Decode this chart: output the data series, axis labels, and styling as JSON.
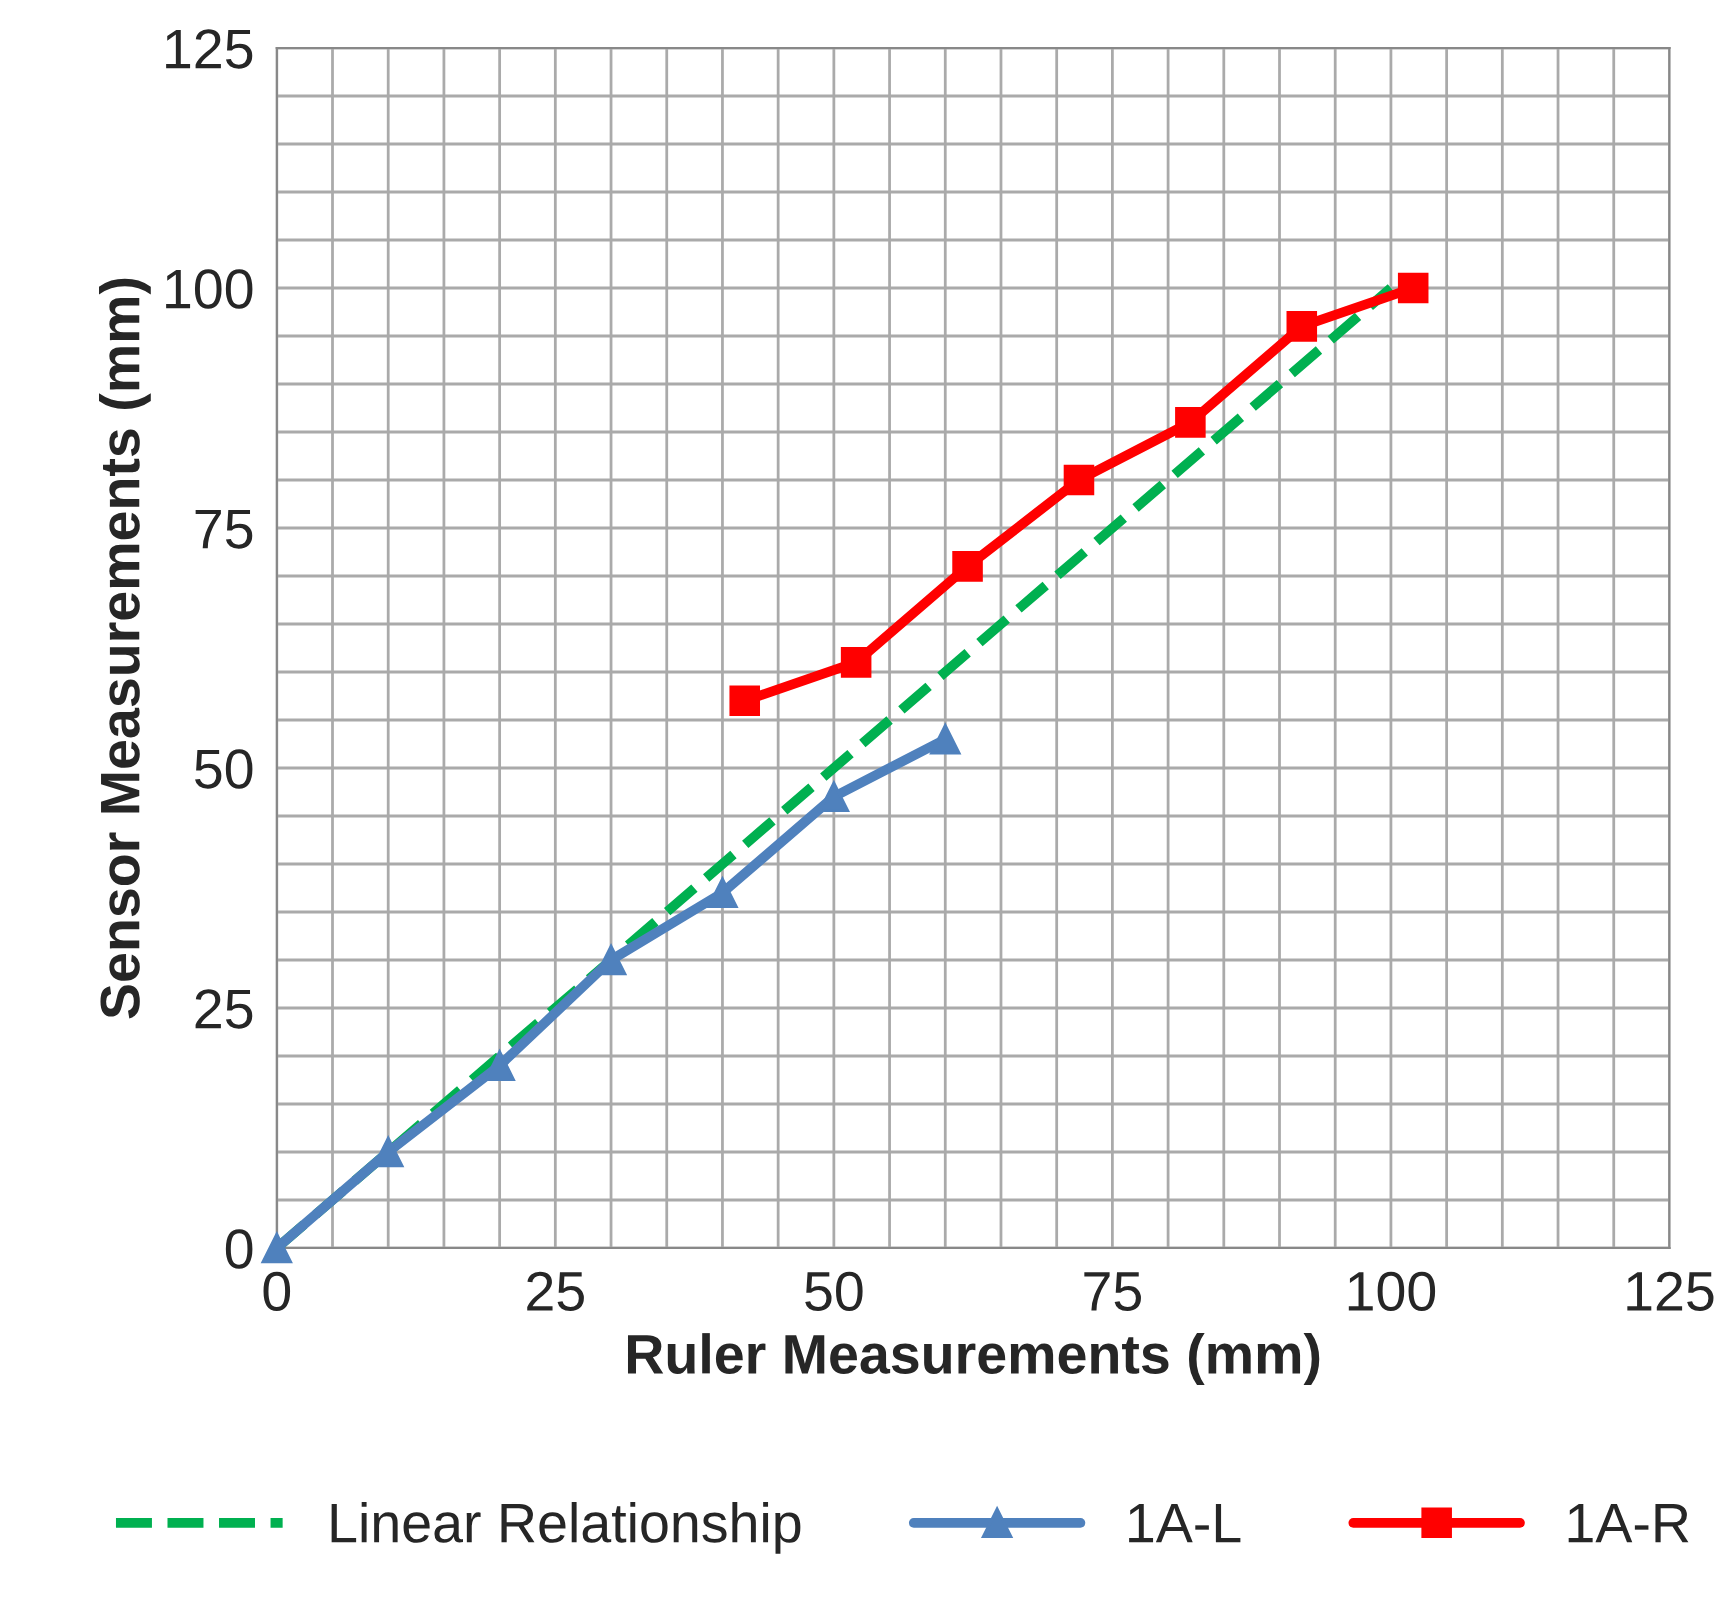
{
  "chart_data": {
    "type": "line",
    "xlabel": "Ruler Measurements (mm)",
    "ylabel": "Sensor Measurements (mm)",
    "xlim": [
      0,
      125
    ],
    "xticks": [
      0,
      25,
      50,
      75,
      100,
      125
    ],
    "ylim": [
      0,
      125
    ],
    "yticks": [
      0,
      25,
      50,
      75,
      100,
      125
    ],
    "grid": true,
    "legend": "bottom",
    "series": [
      {
        "name": "Linear Relationship",
        "color": "#00b050",
        "x": [
          0,
          100
        ],
        "values": [
          0,
          100
        ],
        "line_style": "dashed",
        "marker": "none"
      },
      {
        "name": "1A-L",
        "color": "#4f81bd",
        "x": [
          0,
          10,
          20,
          30,
          40,
          50,
          60
        ],
        "values": [
          0,
          10,
          19,
          30,
          37,
          47,
          53
        ],
        "line_style": "solid",
        "marker": "triangle"
      },
      {
        "name": "1A-R",
        "color": "#ff0000",
        "x": [
          42,
          52,
          62,
          72,
          82,
          92,
          102
        ],
        "values": [
          57,
          61,
          71,
          80,
          86,
          96,
          100
        ],
        "line_style": "solid",
        "marker": "square"
      }
    ]
  }
}
